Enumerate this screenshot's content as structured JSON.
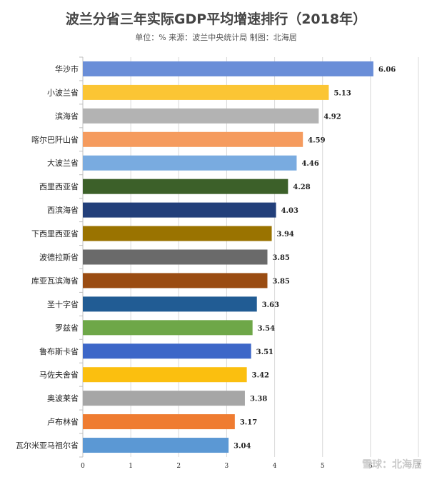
{
  "chart_data": {
    "type": "bar",
    "orientation": "horizontal",
    "title": "波兰分省三年实际GDP平均增速排行（2018年）",
    "subtitle": "单位：% 来源：波兰中央统计局 制图：北海居",
    "categories": [
      "华沙市",
      "小波兰省",
      "滨海省",
      "喀尔巴阡山省",
      "大波兰省",
      "西里西亚省",
      "西滨海省",
      "下西里西亚省",
      "波德拉斯省",
      "库亚瓦滨海省",
      "圣十字省",
      "罗兹省",
      "鲁布斯卡省",
      "马佐夫舍省",
      "奥波莱省",
      "卢布林省",
      "瓦尔米亚马祖尔省"
    ],
    "values": [
      6.06,
      5.13,
      4.92,
      4.59,
      4.46,
      4.28,
      4.03,
      3.94,
      3.85,
      3.85,
      3.63,
      3.54,
      3.51,
      3.42,
      3.38,
      3.17,
      3.04
    ],
    "value_labels": [
      "6.06",
      "5.13",
      "4.92",
      "4.59",
      "4.46",
      "4.28",
      "4.03",
      "3.94",
      "3.85",
      "3.85",
      "3.63",
      "3.54",
      "3.51",
      "3.42",
      "3.38",
      "3.17",
      "3.04"
    ],
    "colors": [
      "#6a8ed8",
      "#fbc534",
      "#b3b3b3",
      "#f59b5e",
      "#79abe0",
      "#3c6029",
      "#223f7a",
      "#9a7300",
      "#6a6a6a",
      "#9a4c12",
      "#215c94",
      "#6ea748",
      "#3d67c8",
      "#fbbf0f",
      "#a6a6a6",
      "#ef7c31",
      "#5b98d4"
    ],
    "xlim": [
      0,
      7
    ],
    "xticks": [
      "0",
      "1",
      "2",
      "3",
      "4",
      "5",
      "6",
      "7"
    ],
    "grid": true
  },
  "watermark": "雪球：北海居"
}
